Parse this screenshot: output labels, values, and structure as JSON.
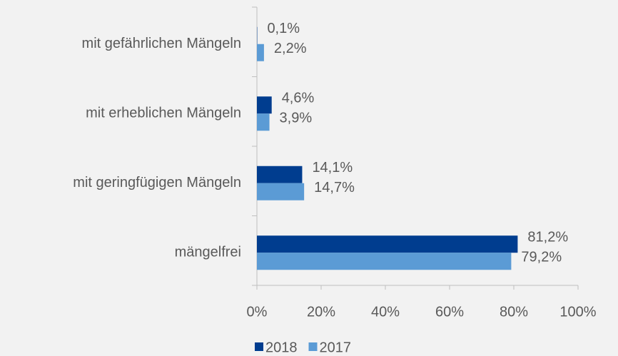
{
  "chart_data": {
    "type": "hbar",
    "categories": [
      "mit gefährlichen Mängeln",
      "mit erheblichen Mängeln",
      "mit geringfügigen Mängeln",
      "mängelfrei"
    ],
    "series": [
      {
        "name": "2018",
        "color": "#003d8f",
        "values": [
          0.1,
          4.6,
          14.1,
          81.2
        ],
        "value_labels": [
          "0,1%",
          "4,6%",
          "14,1%",
          "81,2%"
        ]
      },
      {
        "name": "2017",
        "color": "#5b9bd5",
        "values": [
          2.2,
          3.9,
          14.7,
          79.2
        ],
        "value_labels": [
          "2,2%",
          "3,9%",
          "14,7%",
          "79,2%"
        ]
      }
    ],
    "xlim": [
      0,
      100
    ],
    "xticks": [
      {
        "value": 0,
        "label": "0%"
      },
      {
        "value": 20,
        "label": "20%"
      },
      {
        "value": 40,
        "label": "40%"
      },
      {
        "value": 60,
        "label": "60%"
      },
      {
        "value": 80,
        "label": "80%"
      },
      {
        "value": 100,
        "label": "100%"
      }
    ],
    "legend": "bottom"
  }
}
